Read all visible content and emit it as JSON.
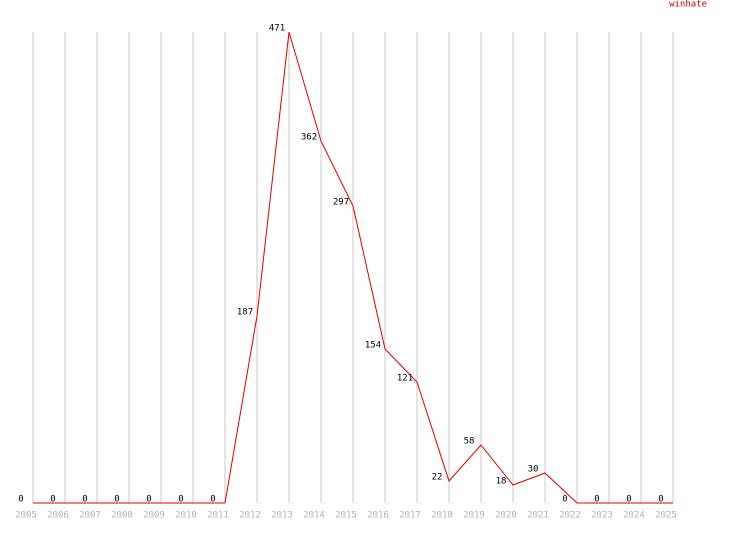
{
  "chart_data": {
    "type": "line",
    "title": "winhate",
    "x": [
      2005,
      2006,
      2007,
      2008,
      2009,
      2010,
      2011,
      2012,
      2013,
      2014,
      2015,
      2016,
      2017,
      2018,
      2019,
      2020,
      2021,
      2022,
      2023,
      2024,
      2025
    ],
    "series": [
      {
        "name": "winhate",
        "color": "#e00000",
        "values": [
          0,
          0,
          0,
          0,
          0,
          0,
          0,
          187,
          471,
          362,
          297,
          154,
          121,
          22,
          58,
          18,
          30,
          0,
          0,
          0,
          0
        ]
      }
    ],
    "xlim": [
      2005,
      2025
    ],
    "ylim": [
      0,
      471
    ],
    "grid": true
  }
}
